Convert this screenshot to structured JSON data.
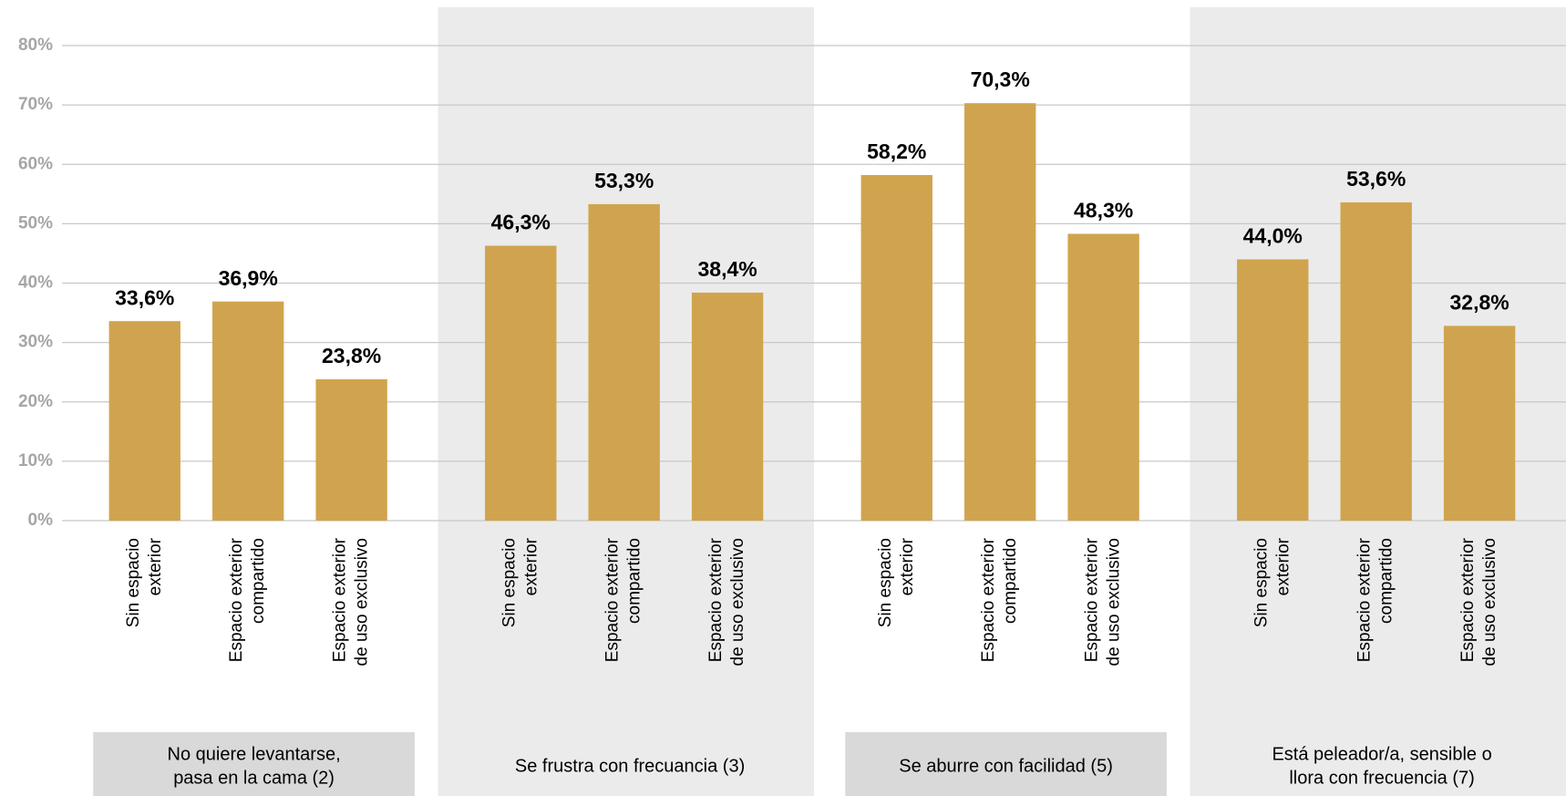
{
  "chart_data": {
    "type": "bar",
    "color": "#d0a44e",
    "grid": true,
    "ylim": [
      0,
      80
    ],
    "yticks": [
      {
        "value": 0,
        "label": "0%"
      },
      {
        "value": 10,
        "label": "10%"
      },
      {
        "value": 20,
        "label": "20%"
      },
      {
        "value": 30,
        "label": "30%"
      },
      {
        "value": 40,
        "label": "40%"
      },
      {
        "value": 50,
        "label": "50%"
      },
      {
        "value": 60,
        "label": "60%"
      },
      {
        "value": 70,
        "label": "70%"
      },
      {
        "value": 80,
        "label": "80%"
      }
    ],
    "categories": [
      [
        "Sin espacio",
        "exterior"
      ],
      [
        "Espacio exterior",
        "compartido"
      ],
      [
        "Espacio exterior",
        "de uso exclusivo"
      ]
    ],
    "groups": [
      {
        "label": [
          "No quiere levantarse,",
          "pasa en la cama (2)"
        ],
        "values": [
          33.6,
          36.9,
          23.8
        ],
        "value_labels": [
          "33,6%",
          "36,9%",
          "23,8%"
        ]
      },
      {
        "label": [
          "Se frustra con frecuancia (3)"
        ],
        "values": [
          46.3,
          53.3,
          38.4
        ],
        "value_labels": [
          "46,3%",
          "53,3%",
          "38,4%"
        ]
      },
      {
        "label": [
          "Se aburre con facilidad (5)"
        ],
        "values": [
          58.2,
          70.3,
          48.3
        ],
        "value_labels": [
          "58,2%",
          "70,3%",
          "48,3%"
        ]
      },
      {
        "label": [
          "Está peleador/a, sensible o",
          "llora con frecuencia (7)"
        ],
        "values": [
          44.0,
          53.6,
          32.8
        ],
        "value_labels": [
          "44,0%",
          "53,6%",
          "32,8%"
        ]
      }
    ]
  }
}
